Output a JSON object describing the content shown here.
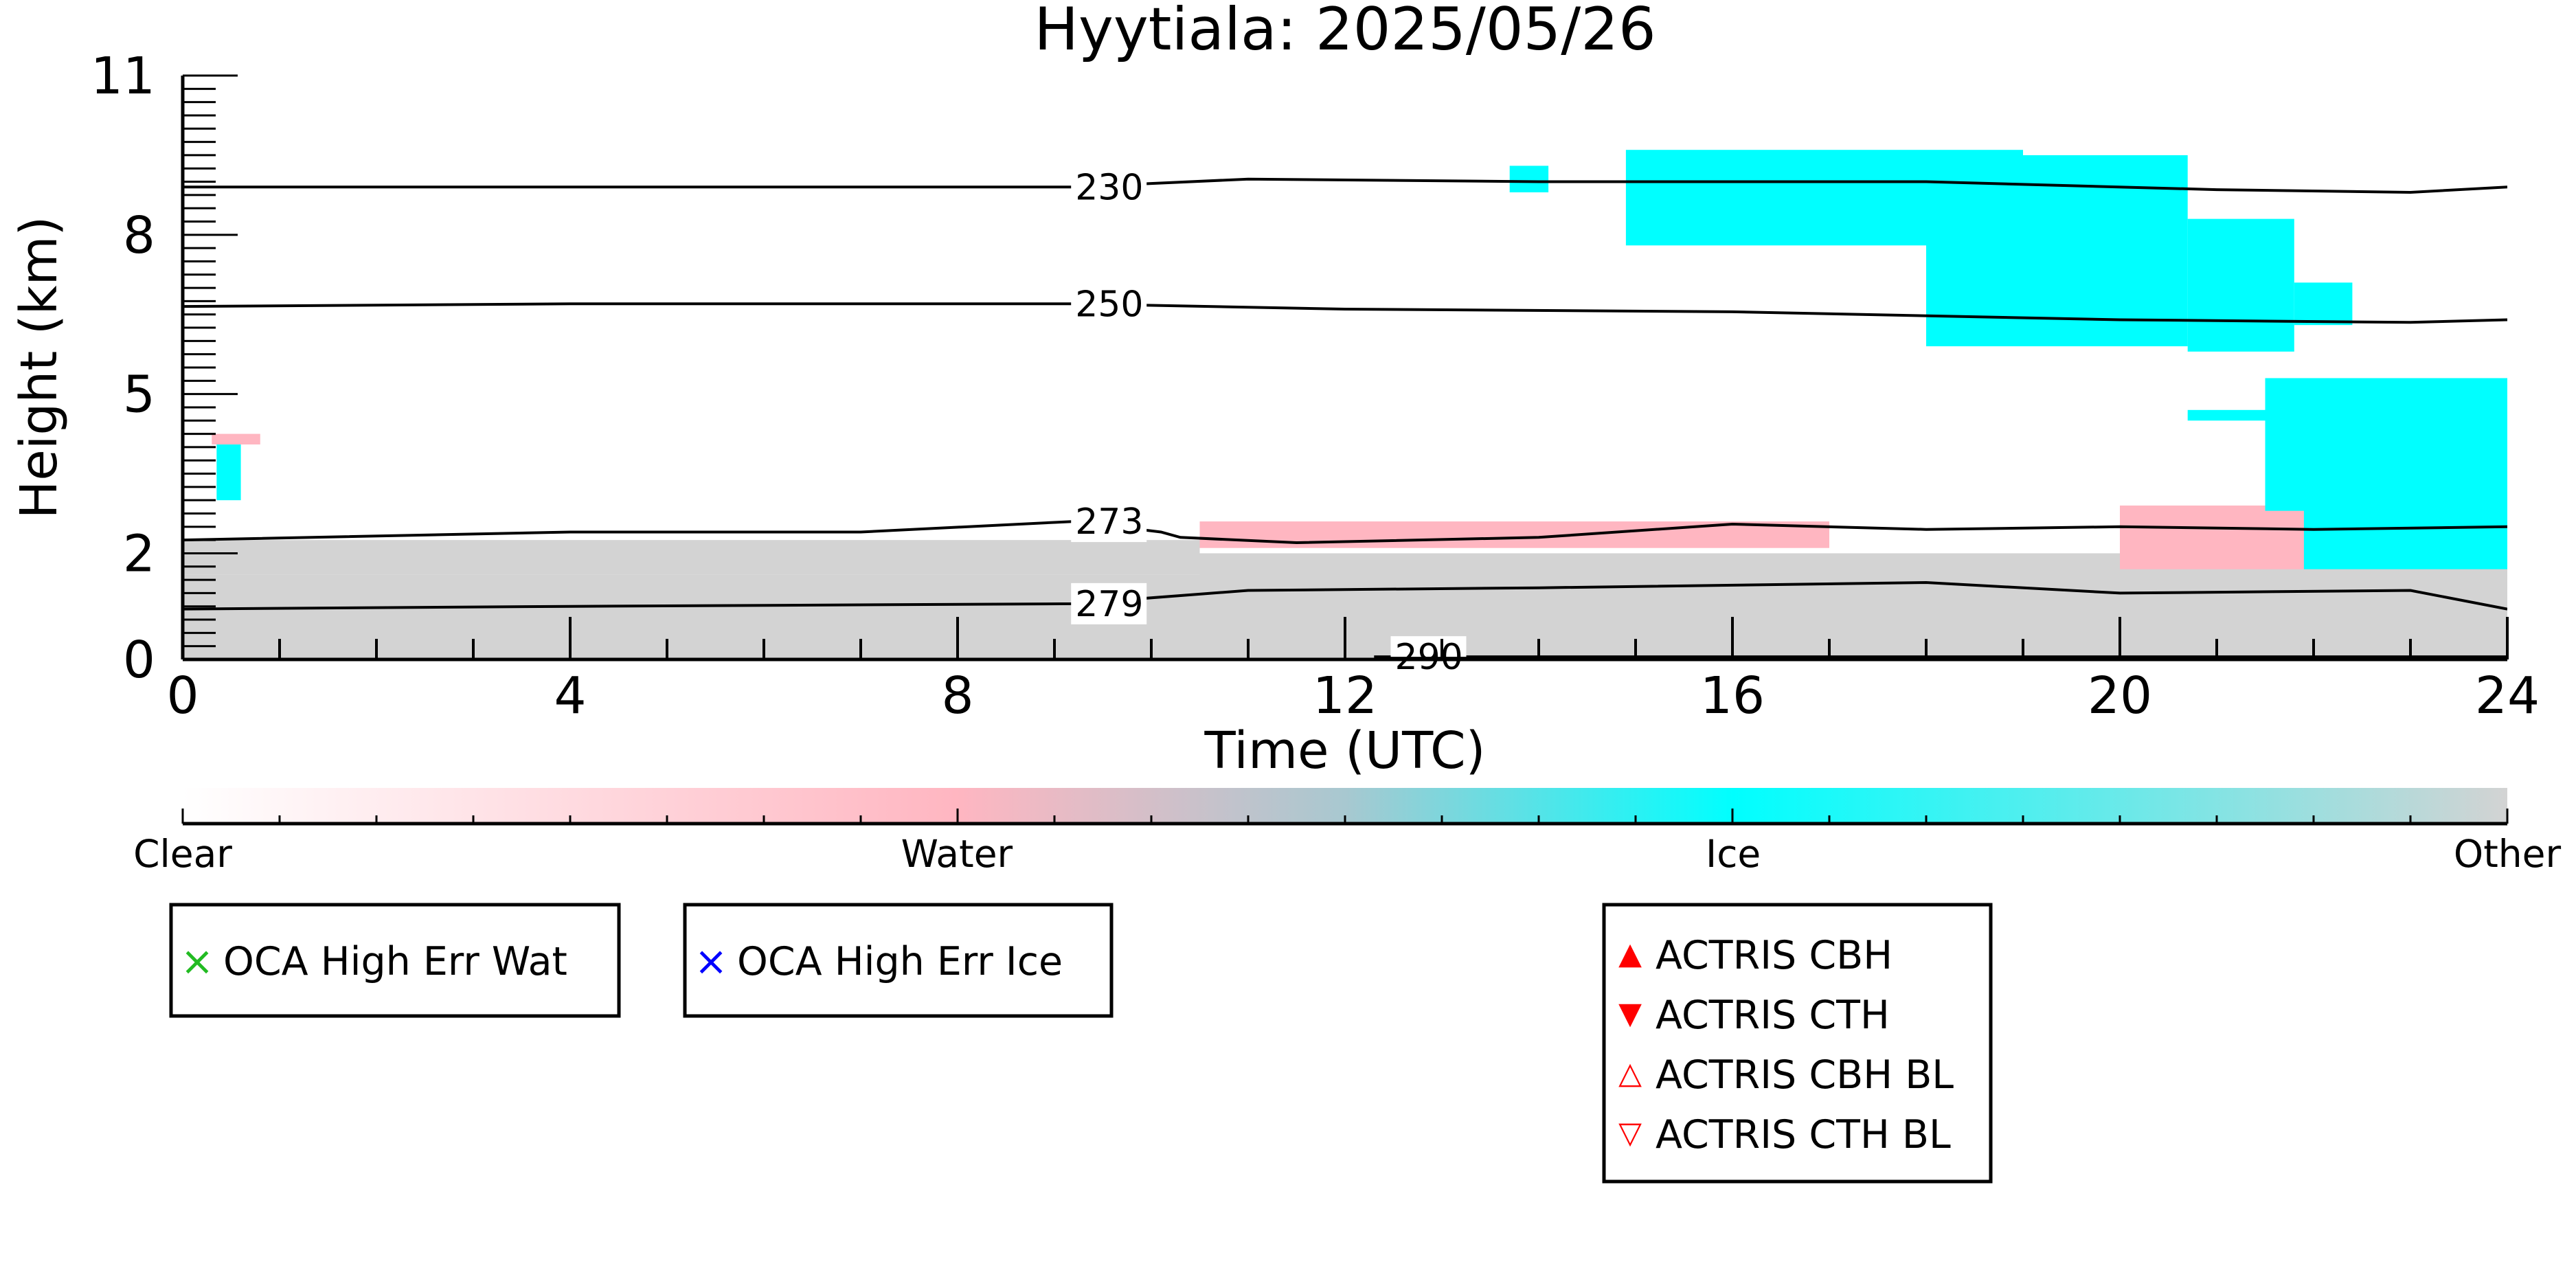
{
  "chart_data": {
    "type": "heatmap",
    "title": "Hyytiala: 2025/05/26",
    "xlabel": "Time (UTC)",
    "ylabel": "Height (km)",
    "xlim": [
      0,
      24
    ],
    "ylim": [
      0,
      11
    ],
    "x_ticks": [
      0,
      4,
      8,
      12,
      16,
      20,
      24
    ],
    "y_ticks": [
      0,
      2,
      5,
      8,
      11
    ],
    "colorbar": {
      "labels": [
        {
          "text": "Clear",
          "pos": 0.0
        },
        {
          "text": "Water",
          "pos": 0.333
        },
        {
          "text": "Ice",
          "pos": 0.667
        },
        {
          "text": "Other",
          "pos": 1.0
        }
      ],
      "colors": [
        "#ffffff",
        "#ffb6c1",
        "#00ffff",
        "#d3d3d3"
      ]
    },
    "classes": [
      {
        "name": "Water",
        "color": "#ffb6c1"
      },
      {
        "name": "Ice",
        "color": "#00ffff"
      },
      {
        "name": "Other",
        "color": "#d3d3d3"
      }
    ],
    "regions": [
      {
        "class": "Other",
        "x0": 0,
        "x1": 24,
        "y0": 0,
        "y1": 1.6
      },
      {
        "class": "Other",
        "x0": 0,
        "x1": 10.5,
        "y0": 1.6,
        "y1": 2.25
      },
      {
        "class": "Other",
        "x0": 10.5,
        "x1": 20,
        "y0": 1.0,
        "y1": 2.0
      },
      {
        "class": "Other",
        "x0": 20,
        "x1": 24,
        "y0": 1.2,
        "y1": 2.6
      },
      {
        "class": "Water",
        "x0": 0.3,
        "x1": 0.8,
        "y0": 4.05,
        "y1": 4.25
      },
      {
        "class": "Ice",
        "x0": 0.35,
        "x1": 0.6,
        "y0": 3.0,
        "y1": 4.05
      },
      {
        "class": "Water",
        "x0": 10.5,
        "x1": 17,
        "y0": 2.1,
        "y1": 2.6
      },
      {
        "class": "Water",
        "x0": 20,
        "x1": 24,
        "y0": 1.7,
        "y1": 2.9
      },
      {
        "class": "Ice",
        "x0": 13.7,
        "x1": 14.1,
        "y0": 8.8,
        "y1": 9.3
      },
      {
        "class": "Ice",
        "x0": 14.9,
        "x1": 19.0,
        "y0": 7.8,
        "y1": 9.6
      },
      {
        "class": "Ice",
        "x0": 18.0,
        "x1": 20.7,
        "y0": 5.9,
        "y1": 9.5
      },
      {
        "class": "Ice",
        "x0": 20.7,
        "x1": 21.8,
        "y0": 5.8,
        "y1": 8.3
      },
      {
        "class": "Ice",
        "x0": 21.8,
        "x1": 22.4,
        "y0": 6.3,
        "y1": 7.1
      },
      {
        "class": "Ice",
        "x0": 20.7,
        "x1": 21.5,
        "y0": 4.5,
        "y1": 4.7
      },
      {
        "class": "Ice",
        "x0": 21.5,
        "x1": 24,
        "y0": 2.8,
        "y1": 5.3
      },
      {
        "class": "Ice",
        "x0": 21.9,
        "x1": 24,
        "y0": 1.7,
        "y1": 3.2
      }
    ],
    "contours": [
      {
        "label": "230",
        "points": [
          [
            0,
            8.9
          ],
          [
            9.2,
            8.9
          ],
          [
            11,
            9.05
          ],
          [
            14,
            9.0
          ],
          [
            18,
            9.0
          ],
          [
            21,
            8.85
          ],
          [
            23,
            8.8
          ],
          [
            24,
            8.9
          ]
        ]
      },
      {
        "label": "250",
        "points": [
          [
            0,
            6.65
          ],
          [
            4,
            6.7
          ],
          [
            9.2,
            6.7
          ],
          [
            12,
            6.6
          ],
          [
            16,
            6.55
          ],
          [
            20,
            6.4
          ],
          [
            23,
            6.35
          ],
          [
            24,
            6.4
          ]
        ]
      },
      {
        "label": "273",
        "points": [
          [
            0,
            2.25
          ],
          [
            4,
            2.4
          ],
          [
            7,
            2.4
          ],
          [
            9.2,
            2.6
          ],
          [
            10.1,
            2.4
          ],
          [
            10.3,
            2.3
          ],
          [
            11.5,
            2.2
          ],
          [
            14,
            2.3
          ],
          [
            16,
            2.55
          ],
          [
            18,
            2.45
          ],
          [
            20,
            2.5
          ],
          [
            22,
            2.45
          ],
          [
            24,
            2.5
          ]
        ]
      },
      {
        "label": "279",
        "points": [
          [
            0,
            0.95
          ],
          [
            4,
            1.0
          ],
          [
            9.2,
            1.05
          ],
          [
            11,
            1.3
          ],
          [
            14,
            1.35
          ],
          [
            18,
            1.45
          ],
          [
            20,
            1.25
          ],
          [
            23,
            1.3
          ],
          [
            24,
            0.95
          ]
        ]
      },
      {
        "label": "290",
        "points": [
          [
            12.3,
            0.05
          ],
          [
            24,
            0.05
          ]
        ]
      }
    ],
    "legend": [
      {
        "marker": "×",
        "color": "#22bb22",
        "text": "OCA High Err Wat"
      },
      {
        "marker": "×",
        "color": "#0000ff",
        "text": "OCA High Err Ice"
      },
      {
        "marker": "▲",
        "color": "#ff0000",
        "text": "ACTRIS CBH"
      },
      {
        "marker": "▼",
        "color": "#ff0000",
        "text": "ACTRIS CTH"
      },
      {
        "marker": "△",
        "color": "#ff0000",
        "text": "ACTRIS CBH BL"
      },
      {
        "marker": "▽",
        "color": "#ff0000",
        "text": "ACTRIS CTH BL"
      }
    ]
  }
}
